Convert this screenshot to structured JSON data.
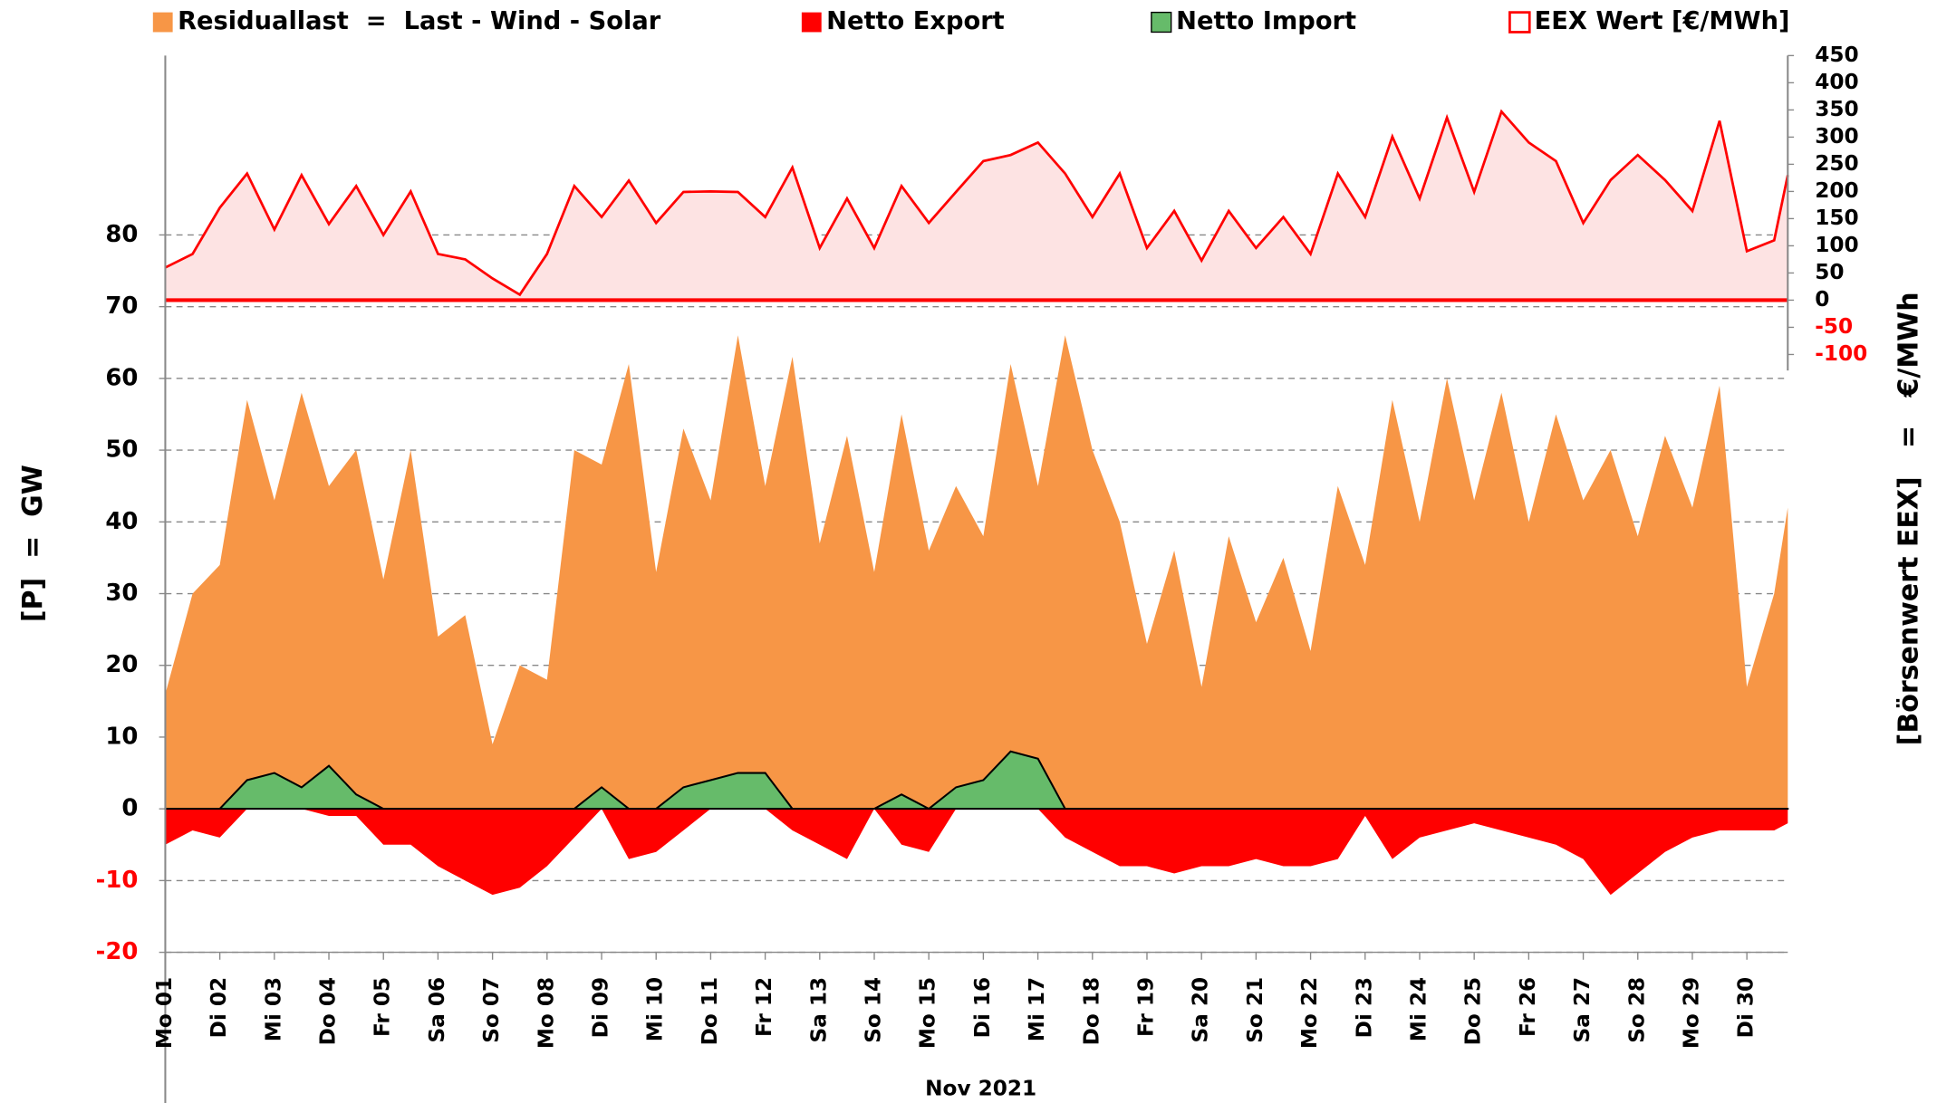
{
  "chart_data": {
    "type": "area",
    "legend": "top",
    "grid": true,
    "x_label": "Nov 2021",
    "y_label": "[P]  =  GW",
    "y2_label": "[Börsenwert EEX]   =   €/MWh",
    "xlim": [
      1,
      30.75
    ],
    "xticks": [
      {
        "value": 1,
        "label": "Mo 01"
      },
      {
        "value": 2,
        "label": "Di 02"
      },
      {
        "value": 3,
        "label": "Mi 03"
      },
      {
        "value": 4,
        "label": "Do 04"
      },
      {
        "value": 5,
        "label": "Fr 05"
      },
      {
        "value": 6,
        "label": "Sa 06"
      },
      {
        "value": 7,
        "label": "So 07"
      },
      {
        "value": 8,
        "label": "Mo 08"
      },
      {
        "value": 9,
        "label": "Di 09"
      },
      {
        "value": 10,
        "label": "Mi 10"
      },
      {
        "value": 11,
        "label": "Do 11"
      },
      {
        "value": 12,
        "label": "Fr 12"
      },
      {
        "value": 13,
        "label": "Sa 13"
      },
      {
        "value": 14,
        "label": "So 14"
      },
      {
        "value": 15,
        "label": "Mo 15"
      },
      {
        "value": 16,
        "label": "Di 16"
      },
      {
        "value": 17,
        "label": "Mi 17"
      },
      {
        "value": 18,
        "label": "Do 18"
      },
      {
        "value": 19,
        "label": "Fr 19"
      },
      {
        "value": 20,
        "label": "Sa 20"
      },
      {
        "value": 21,
        "label": "So 21"
      },
      {
        "value": 22,
        "label": "Mo 22"
      },
      {
        "value": 23,
        "label": "Di 23"
      },
      {
        "value": 24,
        "label": "Mi 24"
      },
      {
        "value": 25,
        "label": "Do 25"
      },
      {
        "value": 26,
        "label": "Fr 26"
      },
      {
        "value": 27,
        "label": "Sa 27"
      },
      {
        "value": 28,
        "label": "So 28"
      },
      {
        "value": 29,
        "label": "Mo 29"
      },
      {
        "value": 30,
        "label": "Di 30"
      }
    ],
    "ylim": [
      -20,
      105
    ],
    "yticks": [
      -20,
      -10,
      0,
      10,
      20,
      30,
      40,
      50,
      60,
      70,
      80
    ],
    "y2lim": [
      -1200,
      450
    ],
    "y2ticks": [
      -100,
      -50,
      0,
      50,
      100,
      150,
      200,
      250,
      300,
      350,
      400,
      450
    ],
    "x": [
      1,
      1.5,
      2,
      2.5,
      3,
      3.5,
      4,
      4.5,
      5,
      5.5,
      6,
      6.5,
      7,
      7.5,
      8,
      8.5,
      9,
      9.5,
      10,
      10.5,
      11,
      11.5,
      12,
      12.5,
      13,
      13.5,
      14,
      14.5,
      15,
      15.5,
      16,
      16.5,
      17,
      17.5,
      18,
      18.5,
      19,
      19.5,
      20,
      20.5,
      21,
      21.5,
      22,
      22.5,
      23,
      23.5,
      24,
      24.5,
      25,
      25.5,
      26,
      26.5,
      27,
      27.5,
      28,
      28.5,
      29,
      29.5,
      30,
      30.5,
      30.75
    ],
    "series": [
      {
        "name": "Residuallast  =  Last - Wind - Solar",
        "color": "#F79646",
        "axis": "y",
        "values": [
          16,
          30,
          34,
          57,
          43,
          58,
          45,
          50,
          32,
          50,
          24,
          27,
          9,
          20,
          18,
          50,
          48,
          62,
          33,
          53,
          43,
          66,
          45,
          63,
          37,
          52,
          33,
          55,
          36,
          45,
          38,
          62,
          45,
          66,
          50,
          40,
          23,
          36,
          17,
          38,
          26,
          35,
          22,
          45,
          34,
          57,
          40,
          60,
          43,
          58,
          40,
          55,
          43,
          50,
          38,
          52,
          42,
          59,
          17,
          30,
          42
        ]
      },
      {
        "name": "Netto Export",
        "color": "#FF0000",
        "axis": "y",
        "values": [
          -5,
          -3,
          -4,
          0,
          0,
          0,
          -1,
          -1,
          -5,
          -5,
          -8,
          -10,
          -12,
          -11,
          -8,
          -4,
          0,
          -7,
          -6,
          -3,
          0,
          0,
          0,
          -3,
          -5,
          -7,
          0,
          -5,
          -6,
          0,
          0,
          0,
          0,
          -4,
          -6,
          -8,
          -8,
          -9,
          -8,
          -8,
          -7,
          -8,
          -8,
          -7,
          -1,
          -7,
          -4,
          -3,
          -2,
          -3,
          -4,
          -5,
          -7,
          -12,
          -9,
          -6,
          -4,
          -3,
          -3,
          -3,
          -2
        ]
      },
      {
        "name": "Netto Import",
        "color": "#66BB6A",
        "axis": "y",
        "values": [
          0,
          0,
          0,
          4,
          5,
          3,
          6,
          2,
          0,
          0,
          0,
          0,
          0,
          0,
          0,
          0,
          3,
          0,
          0,
          3,
          4,
          5,
          5,
          0,
          0,
          0,
          0,
          2,
          0,
          3,
          4,
          8,
          7,
          0,
          0,
          0,
          0,
          0,
          0,
          0,
          0,
          0,
          0,
          0,
          0,
          0,
          0,
          0,
          0,
          0,
          0,
          0,
          0,
          0,
          0,
          0,
          0,
          0,
          0,
          0,
          0
        ]
      },
      {
        "name": "EEX Wert [€/MWh]",
        "color": "#FF0000",
        "axis": "y2",
        "values": [
          60,
          85,
          170,
          233,
          130,
          230,
          140,
          210,
          120,
          200,
          85,
          75,
          40,
          10,
          85,
          210,
          153,
          220,
          142,
          199,
          200,
          199,
          153,
          244,
          96,
          187,
          96,
          210,
          142,
          199,
          256,
          267,
          290,
          233,
          153,
          233,
          96,
          164,
          73,
          164,
          96,
          153,
          85,
          233,
          153,
          301,
          187,
          336,
          199,
          347,
          290,
          256,
          142,
          221,
          267,
          221,
          164,
          330,
          90,
          110,
          230
        ]
      }
    ]
  }
}
